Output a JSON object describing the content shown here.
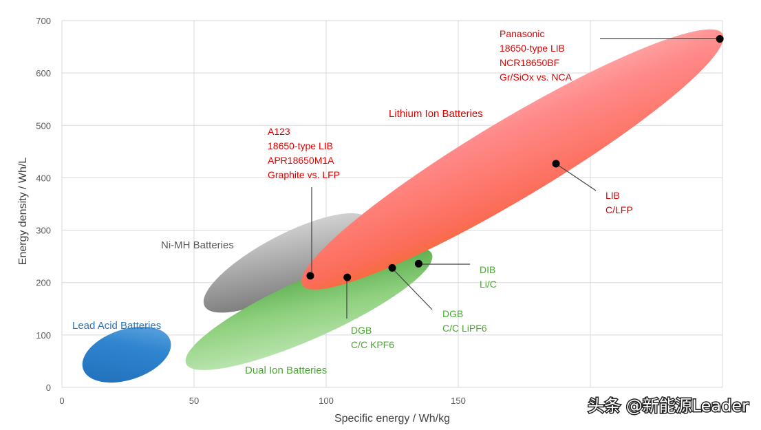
{
  "chart_data": {
    "type": "scatter",
    "title": "",
    "xlabel": "Specific energy / Wh/kg",
    "ylabel": "Energy density / Wh/L",
    "xlim": [
      0,
      250
    ],
    "ylim": [
      0,
      700
    ],
    "xticks": [
      0,
      50,
      100,
      150,
      200,
      250
    ],
    "yticks": [
      0,
      100,
      200,
      300,
      400,
      500,
      600,
      700
    ],
    "xtick_labels": [
      "0",
      "50",
      "100",
      "150",
      "",
      ""
    ],
    "ytick_labels": [
      "0",
      "100",
      "200",
      "300",
      "400",
      "500",
      "600",
      "700"
    ],
    "grid": true,
    "colors": {
      "lead": "#2e75b6",
      "nimh": "#808080",
      "lib": "#ff6b6b",
      "dual": "#7cc26b",
      "red_text": "#e00000",
      "green_text": "#4aa832",
      "blue_text": "#2e75b6",
      "gray_text": "#595959"
    },
    "regions": [
      {
        "name": "Lead Acid Batteries",
        "label": "Lead Acid Batteries",
        "color_key": "lead",
        "x_range": [
          8,
          41
        ],
        "y_range": [
          35,
          90
        ]
      },
      {
        "name": "Ni-MH Batteries",
        "label": "Ni-MH Batteries",
        "color_key": "nimh",
        "x_range": [
          54,
          116
        ],
        "y_range": [
          155,
          320
        ]
      },
      {
        "name": "Lithium Ion Batteries",
        "label": "Lithium Ion Batteries",
        "color_key": "lib",
        "x_range": [
          91,
          250
        ],
        "y_range": [
          195,
          675
        ]
      },
      {
        "name": "Dual Ion Batteries",
        "label": "Dual Ion Batteries",
        "color_key": "dual",
        "x_range": [
          47,
          140
        ],
        "y_range": [
          45,
          255
        ]
      }
    ],
    "points": [
      {
        "name": "A123",
        "x": 94,
        "y": 213,
        "color_key": "red_text",
        "label_lines": [
          "A123",
          "18650-type LIB",
          "APR18650M1A",
          "Graphite vs. LFP"
        ]
      },
      {
        "name": "Panasonic",
        "x": 249,
        "y": 665,
        "color_key": "red_text",
        "label_lines": [
          "Panasonic",
          "18650-type LIB",
          "NCR18650BF",
          "Gr/SiOx vs. NCA"
        ]
      },
      {
        "name": "LIB",
        "x": 187,
        "y": 427,
        "color_key": "red_text",
        "label_lines": [
          "LIB",
          "C/LFP"
        ]
      },
      {
        "name": "DGB KPF6",
        "x": 108,
        "y": 210,
        "color_key": "green_text",
        "label_lines": [
          "DGB",
          "C/C KPF6"
        ]
      },
      {
        "name": "DGB LiPF6",
        "x": 125,
        "y": 228,
        "color_key": "green_text",
        "label_lines": [
          "DGB",
          "C/C LiPF6"
        ]
      },
      {
        "name": "DIB",
        "x": 135,
        "y": 236,
        "color_key": "green_text",
        "label_lines": [
          "DIB",
          "Li/C"
        ]
      }
    ]
  },
  "watermark": "头条 @新能源Leader"
}
